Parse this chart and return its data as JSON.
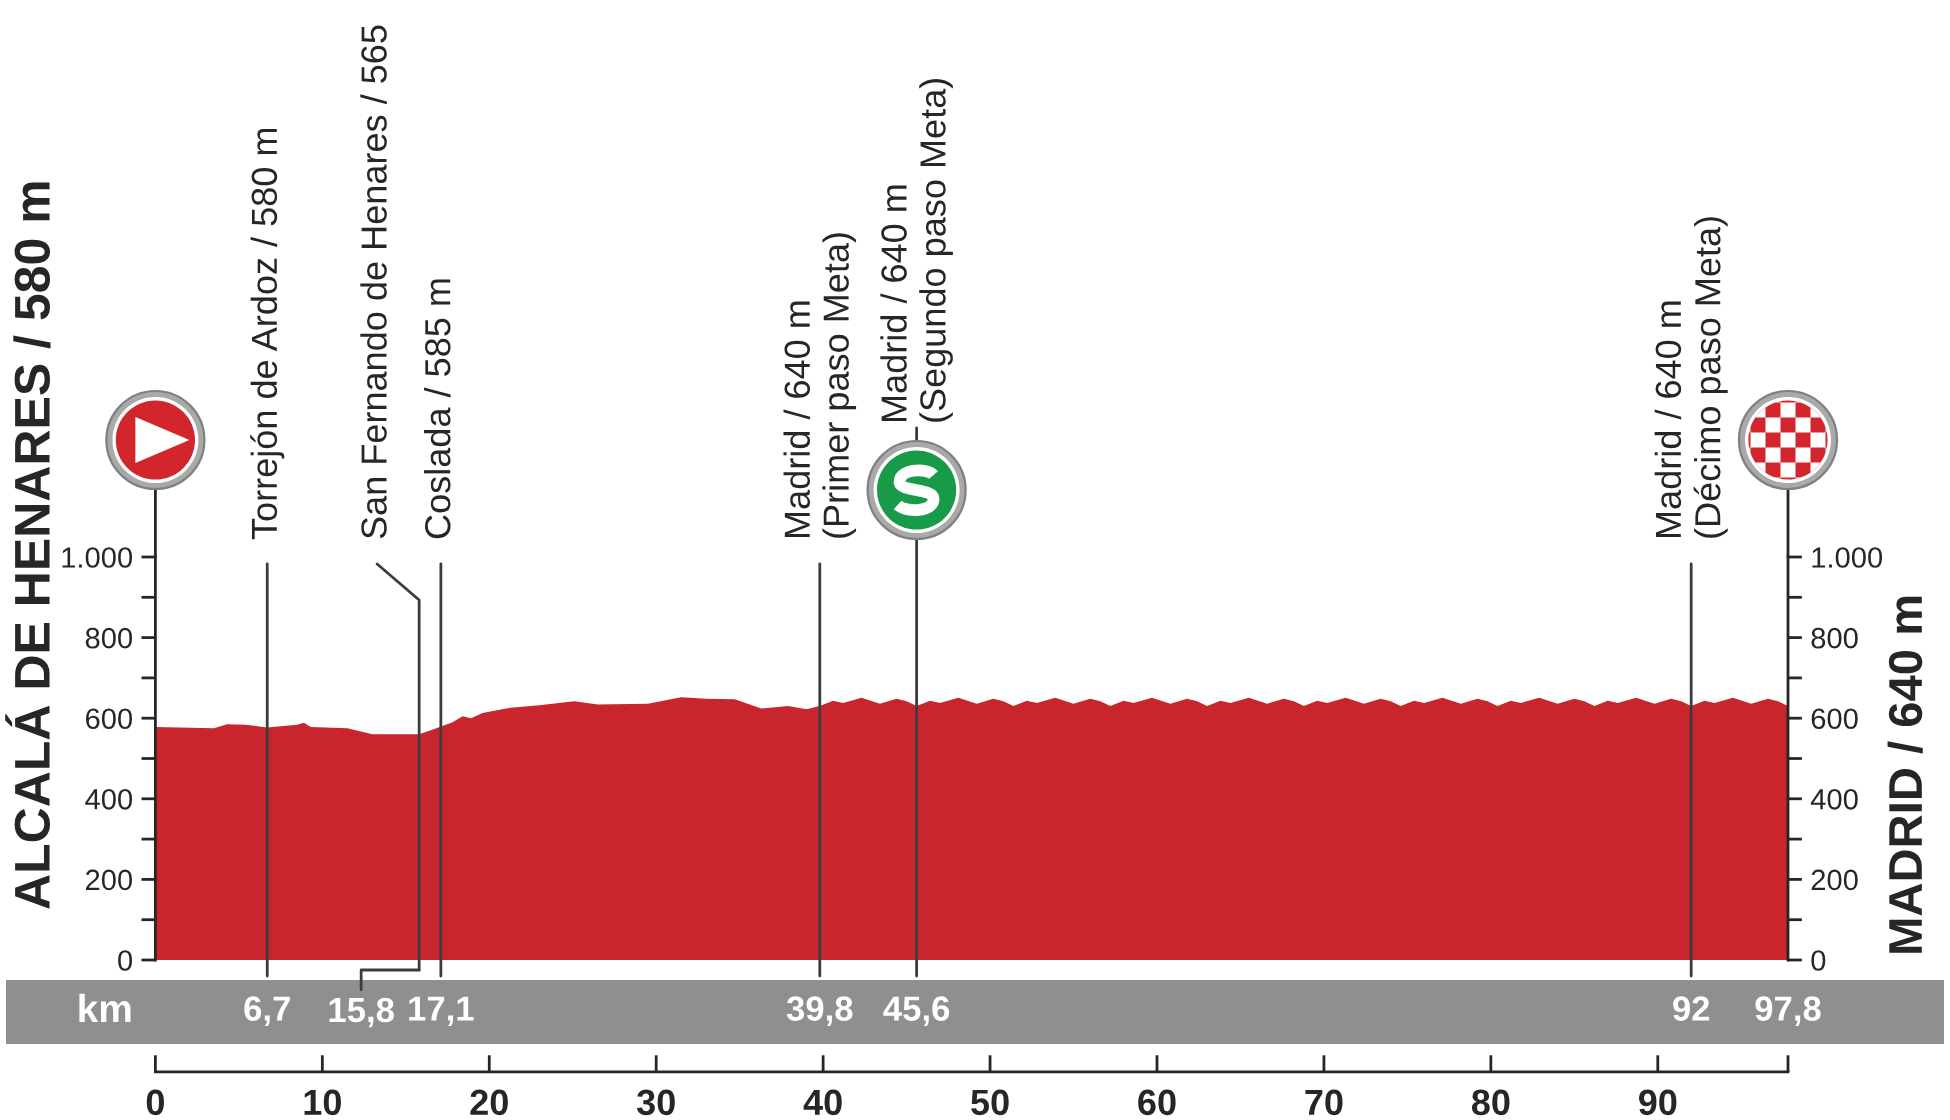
{
  "chart_data": {
    "type": "area",
    "x": [
      0,
      3.5,
      4.3,
      5.4,
      6.7,
      8.5,
      8.9,
      9.3,
      11.5,
      13.0,
      15.8,
      16.5,
      17.8,
      18.4,
      18.9,
      19.6,
      21.1,
      23.0,
      25.1,
      26.5,
      29.5,
      31.5,
      33.0,
      34.7,
      36.3,
      37.9,
      39.0,
      39.8,
      40.6,
      41.2,
      42.3,
      43.4,
      44.4,
      45.0,
      45.6,
      46.4,
      47.0,
      48.1,
      49.2,
      50.2,
      50.8,
      51.4,
      52.2,
      52.8,
      53.9,
      55.0,
      56.0,
      56.6,
      57.2,
      58.0,
      58.6,
      59.7,
      60.8,
      61.8,
      62.4,
      63.0,
      63.8,
      64.4,
      65.5,
      66.6,
      67.6,
      68.2,
      68.8,
      69.6,
      70.2,
      71.3,
      72.4,
      73.4,
      74.0,
      74.6,
      75.4,
      76.0,
      77.1,
      78.2,
      79.2,
      79.8,
      80.4,
      81.2,
      81.8,
      82.9,
      84.0,
      85.0,
      85.6,
      86.2,
      87.0,
      87.6,
      88.7,
      89.8,
      90.8,
      91.4,
      92.0,
      92.8,
      93.4,
      94.5,
      95.6,
      96.6,
      97.2,
      97.8
    ],
    "series": [
      {
        "color": "#c8252c",
        "values": [
          578,
          575,
          585,
          584,
          577,
          584,
          589,
          578,
          575,
          560,
          560,
          570,
          590,
          605,
          600,
          613,
          625,
          632,
          642,
          634,
          636,
          652,
          648,
          647,
          624,
          630,
          622,
          630,
          643,
          638,
          651,
          636,
          648,
          642,
          630,
          643,
          638,
          651,
          636,
          648,
          642,
          630,
          643,
          638,
          651,
          636,
          648,
          642,
          630,
          643,
          638,
          651,
          636,
          648,
          642,
          630,
          643,
          638,
          651,
          636,
          648,
          642,
          630,
          643,
          638,
          651,
          636,
          648,
          642,
          630,
          643,
          638,
          651,
          636,
          648,
          642,
          630,
          643,
          638,
          651,
          636,
          648,
          642,
          630,
          643,
          638,
          651,
          636,
          648,
          642,
          630,
          643,
          638,
          651,
          636,
          648,
          642,
          630
        ]
      }
    ],
    "xlim": [
      0,
      97.8
    ],
    "xticks": [
      0,
      10,
      20,
      30,
      40,
      50,
      60,
      70,
      80,
      90,
      {
        "value": 97.8,
        "label": null
      }
    ],
    "ylim": [
      0,
      1000
    ],
    "yticks": [
      0,
      {
        "value": 100,
        "label": null
      },
      200,
      {
        "value": 300,
        "label": null
      },
      400,
      {
        "value": 500,
        "label": null
      },
      600,
      {
        "value": 700,
        "label": null
      },
      800,
      {
        "value": 900,
        "label": null
      },
      {
        "value": 1000,
        "label": "1.000"
      }
    ],
    "y2lim": [
      0,
      1000
    ],
    "y2ticks": [
      0,
      {
        "value": 100,
        "label": null
      },
      200,
      {
        "value": 300,
        "label": null
      },
      400,
      {
        "value": 500,
        "label": null
      },
      600,
      {
        "value": 700,
        "label": null
      },
      800,
      {
        "value": 900,
        "label": null
      },
      {
        "value": 1000,
        "label": "1.000"
      }
    ],
    "x2lim": [
      0,
      97.8
    ],
    "x2label": "km",
    "x2ticks": [
      {
        "value": 6.7,
        "label": "6,7"
      },
      {
        "value": 17.1,
        "label": "17,1"
      },
      {
        "value": 39.8,
        "label": "39,8"
      },
      {
        "value": 45.6,
        "label": "45,6"
      },
      92,
      {
        "value": 97.8,
        "label": "97,8"
      }
    ],
    "annotations": [
      {
        "text": "15,8",
        "x": 15.8,
        "y": 0
      }
    ],
    "ylabel": "ALCALÁ DE HENARES / 580 m",
    "y2label": "MADRID / 640 m",
    "ref_lines": [
      {
        "axis": "x",
        "value": 6.7,
        "label": "Torrejón de Ardoz / 580 m",
        "color": "#3c3c3c"
      },
      {
        "axis": "x",
        "value": 15.8,
        "label": "San Fernando de Henares / 565",
        "color": "#3c3c3c"
      },
      {
        "axis": "x",
        "value": 17.1,
        "label": "Coslada / 585 m",
        "color": "#3c3c3c"
      },
      {
        "axis": "x",
        "value": 39.8,
        "label": "Madrid / 640 m\n(Primer paso Meta)",
        "color": "#3c3c3c"
      },
      {
        "axis": "x",
        "value": 45.6,
        "label": "Madrid / 640 m\n(Segundo paso Meta)",
        "color": "#3c3c3c"
      },
      {
        "axis": "x",
        "value": 92,
        "label": "Madrid / 640 m\n(Décimo paso Meta)",
        "color": "#3c3c3c"
      }
    ]
  }
}
